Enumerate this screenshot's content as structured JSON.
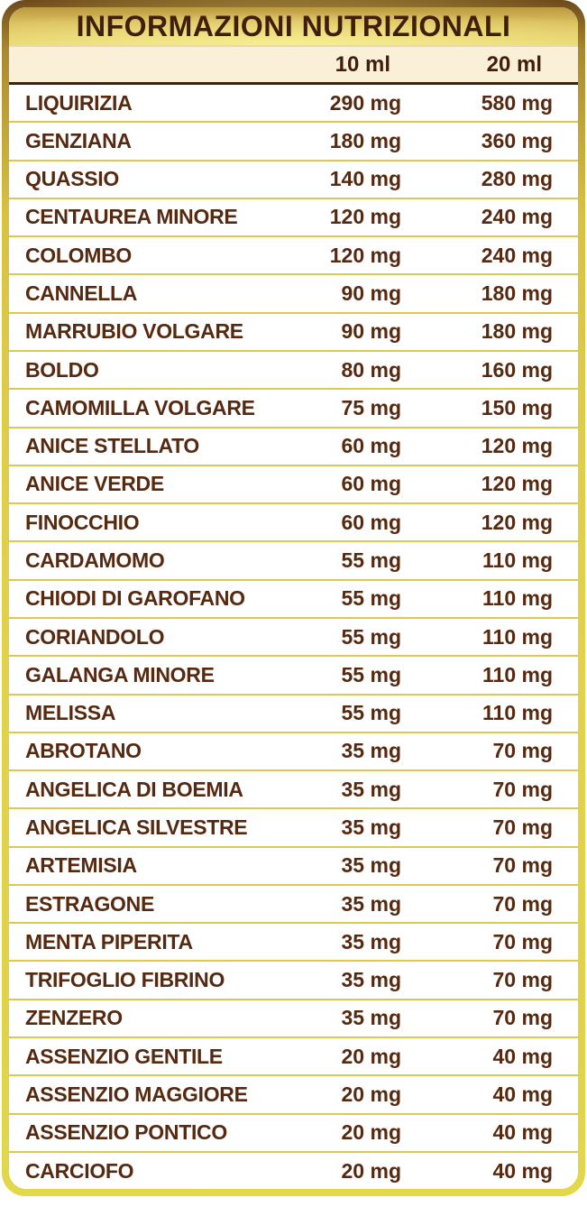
{
  "header": {
    "title": "INFORMAZIONI NUTRIZIONALI"
  },
  "columns": {
    "col1": "10 ml",
    "col2": "20 ml"
  },
  "table": {
    "rows": [
      {
        "name": "LIQUIRIZIA",
        "v10": "290 mg",
        "v20": "580 mg"
      },
      {
        "name": "GENZIANA",
        "v10": "180 mg",
        "v20": "360 mg"
      },
      {
        "name": "QUASSIO",
        "v10": "140 mg",
        "v20": "280 mg"
      },
      {
        "name": "CENTAUREA MINORE",
        "v10": "120 mg",
        "v20": "240 mg"
      },
      {
        "name": "COLOMBO",
        "v10": "120 mg",
        "v20": "240 mg"
      },
      {
        "name": "CANNELLA",
        "v10": "90 mg",
        "v20": "180 mg"
      },
      {
        "name": "MARRUBIO VOLGARE",
        "v10": "90 mg",
        "v20": "180 mg"
      },
      {
        "name": "BOLDO",
        "v10": "80 mg",
        "v20": "160 mg"
      },
      {
        "name": "CAMOMILLA VOLGARE",
        "v10": "75 mg",
        "v20": "150 mg"
      },
      {
        "name": "ANICE STELLATO",
        "v10": "60 mg",
        "v20": "120 mg"
      },
      {
        "name": "ANICE VERDE",
        "v10": "60 mg",
        "v20": "120 mg"
      },
      {
        "name": "FINOCCHIO",
        "v10": "60 mg",
        "v20": "120 mg"
      },
      {
        "name": "CARDAMOMO",
        "v10": "55 mg",
        "v20": "110 mg"
      },
      {
        "name": "CHIODI DI GAROFANO",
        "v10": "55 mg",
        "v20": "110 mg"
      },
      {
        "name": "CORIANDOLO",
        "v10": "55 mg",
        "v20": "110 mg"
      },
      {
        "name": "GALANGA MINORE",
        "v10": "55 mg",
        "v20": "110 mg"
      },
      {
        "name": "MELISSA",
        "v10": "55 mg",
        "v20": "110 mg"
      },
      {
        "name": "ABROTANO",
        "v10": "35 mg",
        "v20": "70 mg"
      },
      {
        "name": "ANGELICA DI BOEMIA",
        "v10": "35 mg",
        "v20": "70 mg"
      },
      {
        "name": "ANGELICA SILVESTRE",
        "v10": "35 mg",
        "v20": "70 mg"
      },
      {
        "name": "ARTEMISIA",
        "v10": "35 mg",
        "v20": "70 mg"
      },
      {
        "name": "ESTRAGONE",
        "v10": "35 mg",
        "v20": "70 mg"
      },
      {
        "name": "MENTA PIPERITA",
        "v10": "35 mg",
        "v20": "70 mg"
      },
      {
        "name": "TRIFOGLIO FIBRINO",
        "v10": "35 mg",
        "v20": "70 mg"
      },
      {
        "name": "ZENZERO",
        "v10": "35 mg",
        "v20": "70 mg"
      },
      {
        "name": "ASSENZIO GENTILE",
        "v10": "20 mg",
        "v20": "40 mg"
      },
      {
        "name": "ASSENZIO MAGGIORE",
        "v10": "20 mg",
        "v20": "40 mg"
      },
      {
        "name": "ASSENZIO PONTICO",
        "v10": "20 mg",
        "v20": "40 mg"
      },
      {
        "name": "CARCIOFO",
        "v10": "20 mg",
        "v20": "40 mg"
      }
    ]
  },
  "colors": {
    "text_dark": "#3f1f0c",
    "text_brown": "#562a11",
    "cream_background": "#faf0d8",
    "row_separator": "#ddc94e",
    "dark_rule": "#45220c",
    "gold_border": "#ddc93e"
  }
}
